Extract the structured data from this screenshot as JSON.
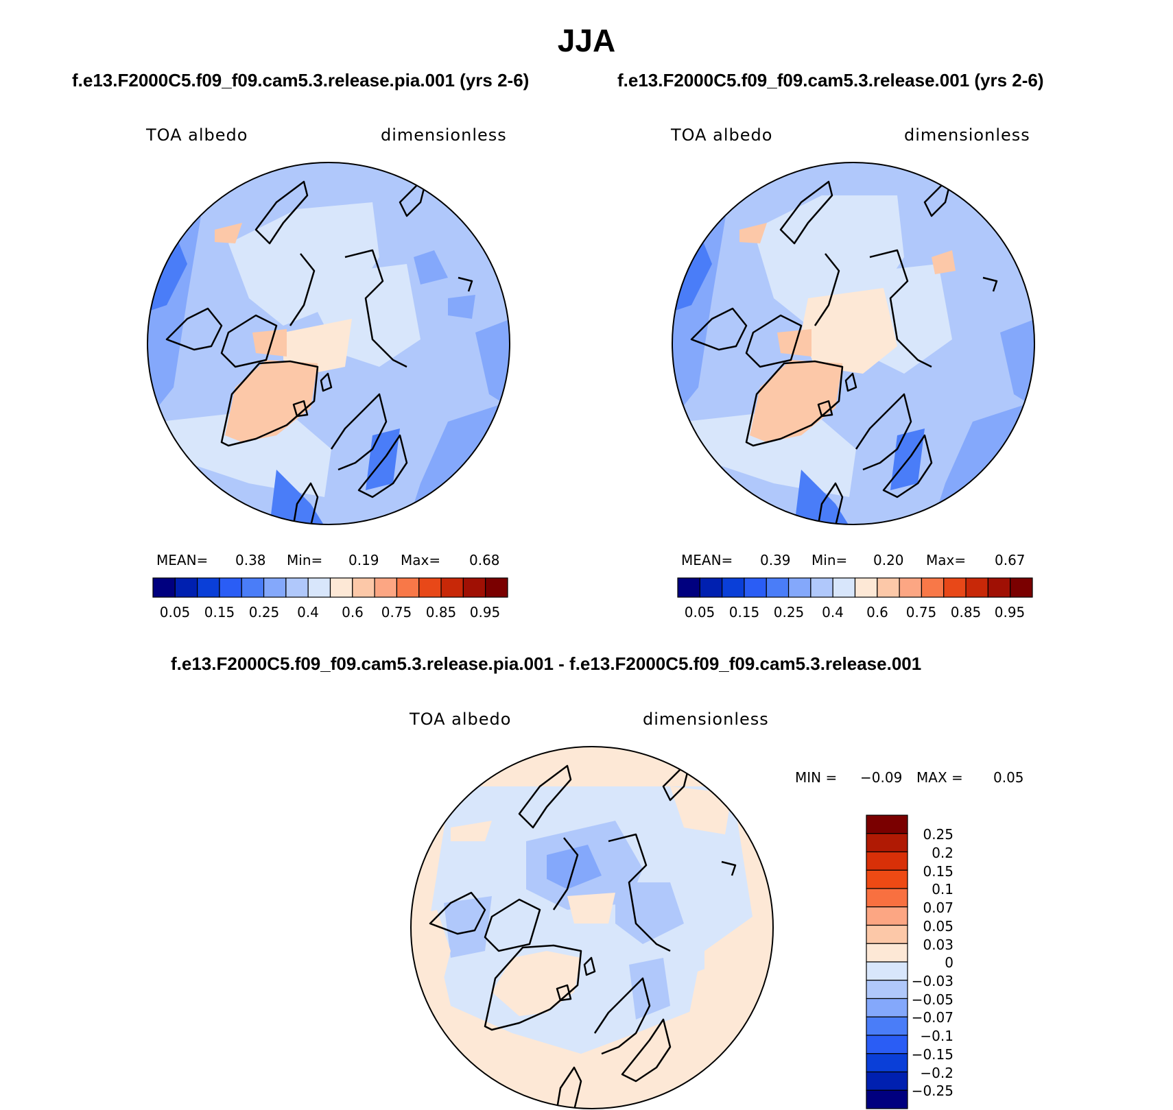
{
  "title": "JJA",
  "panels": [
    {
      "case": "f.e13.F2000C5.f09_f09.cam5.3.release.pia.001 (yrs 2-6)",
      "variable": "TOA albedo",
      "units": "dimensionless",
      "mean_label": "MEAN=",
      "mean": "0.38",
      "min_label": "Min=",
      "min": "0.19",
      "max_label": "Max=",
      "max": "0.68"
    },
    {
      "case": "f.e13.F2000C5.f09_f09.cam5.3.release.001 (yrs 2-6)",
      "variable": "TOA albedo",
      "units": "dimensionless",
      "mean_label": "MEAN=",
      "mean": "0.39",
      "min_label": "Min=",
      "min": "0.20",
      "max_label": "Max=",
      "max": "0.67"
    }
  ],
  "colorbar": {
    "colors": [
      "#00007f",
      "#0020b0",
      "#0a3fd8",
      "#2a5df5",
      "#4a7df8",
      "#84a8fb",
      "#b0c8fb",
      "#d8e6fb",
      "#fde8d6",
      "#fcc8a8",
      "#fca683",
      "#f87848",
      "#e84818",
      "#c82808",
      "#a01004",
      "#7a0000"
    ],
    "labels": [
      "0.05",
      "0.15",
      "0.25",
      "0.4",
      "0.6",
      "0.75",
      "0.85",
      "0.95"
    ]
  },
  "diff": {
    "title": "f.e13.F2000C5.f09_f09.cam5.3.release.pia.001 - f.e13.F2000C5.f09_f09.cam5.3.release.001",
    "variable": "TOA albedo",
    "units": "dimensionless",
    "min_label": "MIN =",
    "min": "−0.09",
    "max_label": "MAX =",
    "max": "0.05",
    "colors_top_to_bottom": [
      "#7a0000",
      "#b01a04",
      "#d83008",
      "#ee4a14",
      "#f87040",
      "#fca683",
      "#fcc8a8",
      "#fde8d6",
      "#d8e6fb",
      "#b0c8fb",
      "#84a8fb",
      "#4a7df8",
      "#2a5df5",
      "#0a3fd8",
      "#0020b0",
      "#00007f"
    ],
    "labels_top_to_bottom": [
      "0.25",
      "0.2",
      "0.15",
      "0.1",
      "0.07",
      "0.05",
      "0.03",
      "0",
      "−0.03",
      "−0.05",
      "−0.07",
      "−0.1",
      "−0.15",
      "−0.2",
      "−0.25"
    ]
  }
}
